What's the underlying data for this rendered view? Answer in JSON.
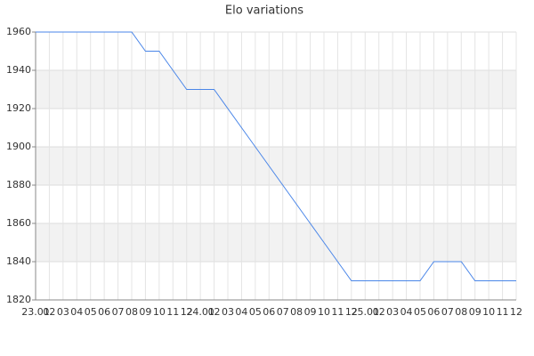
{
  "chart_data": {
    "type": "line",
    "title": "Elo variations",
    "categories": [
      "23.01",
      "02",
      "03",
      "04",
      "05",
      "06",
      "07",
      "08",
      "09",
      "10",
      "11",
      "12",
      "24.01",
      "02",
      "03",
      "04",
      "05",
      "06",
      "07",
      "08",
      "09",
      "10",
      "11",
      "12",
      "25.01",
      "02",
      "03",
      "04",
      "05",
      "06",
      "07",
      "08",
      "09",
      "10",
      "11",
      "12"
    ],
    "values": [
      1960,
      1960,
      1960,
      1960,
      1960,
      1960,
      1960,
      1960,
      1950,
      1950,
      1940,
      1930,
      1930,
      1930,
      1920,
      1910,
      1900,
      1890,
      1880,
      1870,
      1860,
      1850,
      1840,
      1830,
      1830,
      1830,
      1830,
      1830,
      1830,
      1840,
      1840,
      1840,
      1830,
      1830,
      1830,
      1830
    ],
    "color": "#4a86e8",
    "ylim": [
      1820,
      1960
    ],
    "yticks": [
      1820,
      1840,
      1860,
      1880,
      1900,
      1920,
      1940,
      1960
    ],
    "grid": true
  }
}
